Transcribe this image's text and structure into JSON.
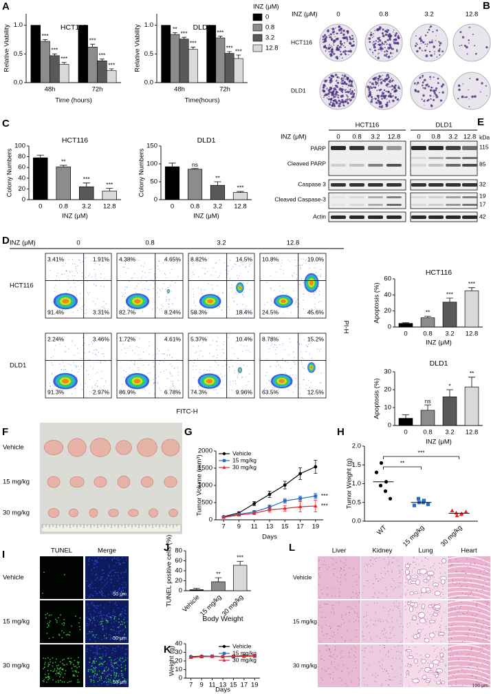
{
  "chart_data": [
    {
      "type": "grouped_bar",
      "title": "HCT116",
      "x_label": "Time (hours)",
      "y_label": "Relative Viability",
      "categories": [
        "48h",
        "72h"
      ],
      "ylim": [
        0,
        1.2
      ],
      "yticks": [
        {
          "value": 0,
          "label": "0.0"
        },
        {
          "value": 0.5,
          "label": "0.5"
        },
        {
          "value": 1,
          "label": "1.0"
        }
      ],
      "series": [
        {
          "color": "#000000",
          "values": [
            1,
            1
          ]
        },
        {
          "color": "#8c8c8c",
          "values": [
            0.72,
            0.62
          ],
          "errors": [
            0.03,
            0.05
          ],
          "sig": [
            "***",
            "***"
          ]
        },
        {
          "color": "#595959",
          "values": [
            0.47,
            0.38
          ],
          "errors": [
            0.03,
            0.03
          ],
          "sig": [
            "***",
            "***"
          ]
        },
        {
          "color": "#d9d9d9",
          "values": [
            0.32,
            0.21
          ],
          "errors": [
            0.03,
            0.03
          ],
          "sig": [
            "***",
            "***"
          ]
        }
      ]
    },
    {
      "type": "grouped_bar",
      "title": "DLD1",
      "x_label": "Time(hours)",
      "y_label": "Relative Viability",
      "categories": [
        "48h",
        "72h"
      ],
      "ylim": [
        0,
        1.2
      ],
      "legend_title": "INZ (μM)",
      "yticks": [
        {
          "value": 0,
          "label": "0.0"
        },
        {
          "value": 0.5,
          "label": "0.5"
        },
        {
          "value": 1,
          "label": "1.0"
        }
      ],
      "series": [
        {
          "name": "0",
          "color": "#000000",
          "values": [
            1,
            1
          ]
        },
        {
          "name": "0.8",
          "color": "#8c8c8c",
          "values": [
            0.84,
            0.78
          ],
          "errors": [
            0.03,
            0.03
          ],
          "sig": [
            "**",
            "***"
          ]
        },
        {
          "name": "3.2",
          "color": "#595959",
          "values": [
            0.76,
            0.51
          ],
          "errors": [
            0.03,
            0.03
          ],
          "sig": [
            "***",
            "***"
          ]
        },
        {
          "name": "12.8",
          "color": "#d9d9d9",
          "values": [
            0.58,
            0.42
          ],
          "errors": [
            0.04,
            0.06
          ],
          "sig": [
            "***",
            "***"
          ]
        }
      ]
    },
    {
      "type": "bar",
      "title": "HCT116",
      "x_label": "INZ (μM)",
      "y_label": "Colony Numbers",
      "categories": [
        "0",
        "0.8",
        "3.2",
        "12.8"
      ],
      "values": [
        78,
        61,
        24,
        16
      ],
      "errors": [
        5,
        3,
        7,
        5
      ],
      "sig": [
        null,
        "**",
        "***",
        "***"
      ],
      "colors": [
        "#000000",
        "#8c8c8c",
        "#595959",
        "#d9d9d9"
      ],
      "ylim": [
        0,
        100
      ],
      "yticks": [
        0,
        20,
        40,
        60,
        80,
        100
      ]
    },
    {
      "type": "bar",
      "title": "DLD1",
      "x_label": "INZ (μM)",
      "y_label": "Colony Numbers",
      "categories": [
        "0",
        "0.8",
        "3.2",
        "12.8"
      ],
      "values": [
        92,
        85,
        40,
        20
      ],
      "errors": [
        10,
        2,
        10,
        3
      ],
      "sig": [
        null,
        "ns",
        "**",
        "***"
      ],
      "colors": [
        "#000000",
        "#8c8c8c",
        "#595959",
        "#d9d9d9"
      ],
      "ylim": [
        0,
        150
      ],
      "yticks": [
        0,
        50,
        100,
        150
      ]
    },
    {
      "type": "bar",
      "title": "HCT116",
      "x_label": "INZ (μM)",
      "y_label": "Apoptosis (%)",
      "categories": [
        "0",
        "0.8",
        "3.2",
        "12.8"
      ],
      "values": [
        4.5,
        11.5,
        31,
        45
      ],
      "errors": [
        0.8,
        2,
        5,
        4
      ],
      "sig": [
        null,
        "**",
        "***",
        "***"
      ],
      "colors": [
        "#000000",
        "#8c8c8c",
        "#595959",
        "#d9d9d9"
      ],
      "ylim": [
        0,
        60
      ],
      "yticks": [
        0,
        20,
        40,
        60
      ]
    },
    {
      "type": "bar",
      "title": "DLD1",
      "x_label": "INZ (μM)",
      "y_label": "Apoptosis (%)",
      "categories": [
        "0",
        "0.8",
        "3.2",
        "12.8"
      ],
      "values": [
        4,
        8.5,
        16,
        21.5
      ],
      "errors": [
        2,
        3,
        4,
        5.5
      ],
      "sig": [
        null,
        "ns",
        "*",
        "**"
      ],
      "colors": [
        "#000000",
        "#8c8c8c",
        "#595959",
        "#d9d9d9"
      ],
      "ylim": [
        0,
        30
      ],
      "yticks": [
        0,
        10,
        20,
        30
      ]
    },
    {
      "type": "line",
      "x_label": "Days",
      "y_label": "Tumor Volume (mm³)",
      "legend": "upper left",
      "x": [
        7,
        9,
        11,
        13,
        15,
        17,
        19
      ],
      "xlim": [
        6,
        20
      ],
      "xticks": [
        7,
        9,
        11,
        13,
        15,
        17,
        19
      ],
      "ylim": [
        0,
        2000
      ],
      "yticks": [
        0,
        500,
        1000,
        1500,
        2000
      ],
      "series": [
        {
          "name": "Vehicle",
          "color": "#000000",
          "marker": "circle",
          "values": [
            90,
            200,
            470,
            740,
            1010,
            1340,
            1540
          ],
          "errors": [
            15,
            30,
            60,
            90,
            110,
            170,
            190
          ]
        },
        {
          "name": "15 mg/kg",
          "color": "#2e6bbd",
          "marker": "square",
          "values": [
            80,
            160,
            230,
            370,
            550,
            620,
            690
          ],
          "errors": [
            10,
            20,
            40,
            60,
            70,
            70,
            80
          ],
          "sig": "***"
        },
        {
          "name": "30 mg/kg",
          "color": "#e32626",
          "marker": "triangle",
          "values": [
            70,
            140,
            190,
            290,
            330,
            380,
            400
          ],
          "errors": [
            10,
            20,
            40,
            70,
            80,
            150,
            170
          ],
          "sig": "***"
        }
      ]
    },
    {
      "type": "strip",
      "y_label": "Tumor Weight (g)",
      "categories": [
        "WT",
        "15 mg/kg",
        "30 mg/kg"
      ],
      "ylim": [
        0,
        2
      ],
      "yticks": [
        {
          "value": 0,
          "label": "0.0"
        },
        {
          "value": 0.5,
          "label": "0.5"
        },
        {
          "value": 1,
          "label": "1.0"
        },
        {
          "value": 1.5,
          "label": "1.5"
        },
        {
          "value": 2,
          "label": "2.0"
        }
      ],
      "groups": [
        {
          "color": "#000000",
          "marker": "circle",
          "values": [
            1.3,
            1.55,
            1.05,
            0.95,
            0.8,
            0.6
          ],
          "mean": 1.05
        },
        {
          "color": "#2e6bbd",
          "marker": "square",
          "values": [
            0.42,
            0.5,
            0.55,
            0.6,
            0.5,
            0.45
          ],
          "mean": 0.5,
          "sig": "**"
        },
        {
          "color": "#e32626",
          "marker": "triangle",
          "values": [
            0.28,
            0.15,
            0.2,
            0.22,
            0.18,
            0.25
          ],
          "mean": 0.21,
          "sig": "***"
        }
      ]
    },
    {
      "type": "bar",
      "y_label": "TUNEL positive cells (%)",
      "categories": [
        "Vehicle",
        "15 mg/kg",
        "30 mg/kg"
      ],
      "values": [
        2,
        18,
        51
      ],
      "errors": [
        3,
        8,
        8
      ],
      "sig": [
        null,
        "**",
        "***"
      ],
      "colors": [
        "#000000",
        "#8c8c8c",
        "#d9d9d9"
      ],
      "ylim": [
        0,
        80
      ],
      "yticks": [
        0,
        20,
        40,
        60,
        80
      ]
    },
    {
      "type": "line",
      "title": "Body Weight",
      "x_label": "Days",
      "y_label": "Weight (g)",
      "legend": "upper right",
      "x": [
        7,
        9,
        11,
        13,
        15,
        17,
        19
      ],
      "xlim": [
        6,
        20
      ],
      "xticks": [
        7,
        9,
        11,
        13,
        15,
        17,
        19
      ],
      "ylim": [
        0,
        40
      ],
      "yticks": [
        0,
        10,
        20,
        30,
        40
      ],
      "series": [
        {
          "name": "Vehicle",
          "color": "#000000",
          "marker": "circle",
          "values": [
            25,
            25.5,
            25.5,
            25,
            25.5,
            26,
            26
          ],
          "errors": [
            1,
            1,
            1,
            1,
            1,
            1,
            1
          ]
        },
        {
          "name": "15 mg/kg",
          "color": "#2e6bbd",
          "marker": "square",
          "values": [
            24.5,
            25,
            25.5,
            25,
            25,
            25.5,
            25.5
          ],
          "errors": [
            1,
            1,
            1,
            1,
            1,
            1,
            1
          ]
        },
        {
          "name": "30 mg/kg",
          "color": "#e32626",
          "marker": "triangle",
          "values": [
            24,
            25,
            25,
            25,
            25.5,
            25.5,
            26
          ],
          "errors": [
            1,
            1,
            1,
            1,
            1,
            1,
            1
          ]
        }
      ]
    }
  ],
  "figure": {
    "panels": [
      "A",
      "B",
      "C",
      "D",
      "E",
      "F",
      "G",
      "H",
      "I",
      "J",
      "K",
      "L"
    ],
    "colony": {
      "header": "INZ (μM)",
      "doses": [
        "0",
        "0.8",
        "3.2",
        "12.8"
      ],
      "rows": [
        "HCT116",
        "DLD1"
      ]
    },
    "blot": {
      "header": "INZ (μM)",
      "groups": [
        "HCT116",
        "DLD1"
      ],
      "doses": [
        "0",
        "0.8",
        "3.2",
        "12.8"
      ],
      "rows": [
        "PARP",
        "Cleaved PARP",
        "Caspase 3",
        "Cleaved Caspase-3",
        "Actin"
      ],
      "kda_title": "kDa",
      "kda": [
        "115",
        "85",
        "32",
        "19",
        "17",
        "42"
      ]
    },
    "flow": {
      "header": "INZ (μM)",
      "doses": [
        "0",
        "0.8",
        "3.2",
        "12.8"
      ],
      "rows": [
        "HCT116",
        "DLD1"
      ],
      "x_label": "FITC-H",
      "y_label": "PI-H",
      "quadrants": [
        [
          [
            "3.41%",
            "1.91%",
            "91.4%",
            "3.31%"
          ],
          [
            "4.38%",
            "4.65%",
            "82.7%",
            "8.24%"
          ],
          [
            "8.82%",
            "14.5%",
            "58.3%",
            "18.4%"
          ],
          [
            "10.8%",
            "19.0%",
            "24.5%",
            "45.6%"
          ]
        ],
        [
          [
            "2.24%",
            "3.46%",
            "91.3%",
            "2.97%"
          ],
          [
            "1.72%",
            "4.61%",
            "86.9%",
            "6.78%"
          ],
          [
            "5.37%",
            "10.4%",
            "74.3%",
            "9.96%"
          ],
          [
            "8.78%",
            "15.2%",
            "63.5%",
            "12.5%"
          ]
        ]
      ]
    },
    "tumor": {
      "rows": [
        "Vehicle",
        "15 mg/kg",
        "30 mg/kg"
      ]
    },
    "tunel": {
      "columns": [
        "TUNEL",
        "Merge"
      ],
      "rows": [
        "Vehicle",
        "15 mg/kg",
        "30 mg/kg"
      ],
      "scale": "50 μm"
    },
    "histology": {
      "columns": [
        "Liver",
        "Kidney",
        "Lung",
        "Heart"
      ],
      "rows": [
        "Vehicle",
        "15 mg/kg",
        "30 mg/kg"
      ],
      "scale": "100 μm"
    }
  }
}
